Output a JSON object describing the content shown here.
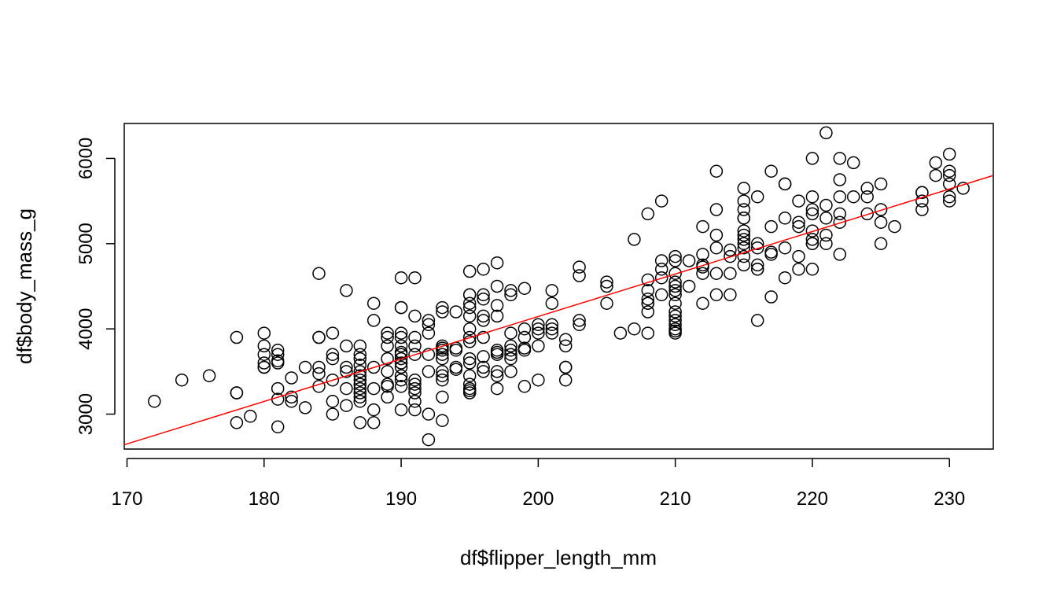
{
  "chart_data": {
    "type": "scatter",
    "title": "",
    "xlabel": "df$flipper_length_mm",
    "ylabel": "df$body_mass_g",
    "xlim": [
      169.8,
      233.2
    ],
    "ylim": [
      2590,
      6410
    ],
    "xticks": [
      170,
      180,
      190,
      200,
      210,
      220,
      230
    ],
    "yticks": [
      3000,
      4000,
      5000,
      6000
    ],
    "xtick_labels": [
      "170",
      "180",
      "190",
      "200",
      "210",
      "220",
      "230"
    ],
    "ytick_labels": [
      "3000",
      "4000",
      "5000",
      "6000"
    ],
    "grid": false,
    "legend": "none",
    "point_style": "open-circle",
    "point_color": "#000000",
    "fit_line": {
      "color": "#ff0000",
      "x": [
        169.8,
        233.2
      ],
      "y": [
        2640,
        5800
      ]
    },
    "series": [
      {
        "x": [
          172,
          174,
          176,
          178,
          178,
          178,
          178,
          179,
          180,
          180,
          180,
          180,
          180,
          180,
          181,
          181,
          181,
          181,
          181,
          181,
          181,
          182,
          182,
          182,
          183,
          183,
          184,
          184,
          184,
          184,
          184,
          184,
          185,
          185,
          185,
          185,
          185,
          185,
          186,
          186,
          186,
          186,
          186,
          186,
          187,
          187,
          187,
          187,
          187,
          187,
          187,
          187,
          187,
          187,
          187,
          187,
          187,
          188,
          188,
          188,
          188,
          188,
          188,
          189,
          189,
          189,
          189,
          189,
          189,
          189,
          189,
          190,
          190,
          190,
          190,
          190,
          190,
          190,
          190,
          190,
          190,
          190,
          190,
          190,
          190,
          190,
          191,
          191,
          191,
          191,
          191,
          191,
          191,
          191,
          191,
          191,
          191,
          192,
          192,
          192,
          192,
          192,
          192,
          192,
          193,
          193,
          193,
          193,
          193,
          193,
          193,
          193,
          193,
          193,
          193,
          193,
          194,
          194,
          194,
          194,
          194,
          195,
          195,
          195,
          195,
          195,
          195,
          195,
          195,
          195,
          195,
          195,
          195,
          195,
          195,
          195,
          195,
          196,
          196,
          196,
          196,
          196,
          196,
          196,
          196,
          196,
          197,
          197,
          197,
          197,
          197,
          197,
          197,
          197,
          197,
          197,
          198,
          198,
          198,
          198,
          198,
          198,
          198,
          198,
          199,
          199,
          199,
          199,
          199,
          199,
          200,
          200,
          200,
          200,
          200,
          201,
          201,
          201,
          201,
          201,
          202,
          202,
          202,
          202,
          202,
          203,
          203,
          203,
          203,
          205,
          205,
          205,
          206,
          207,
          207,
          208,
          208,
          208,
          208,
          208,
          208,
          208,
          208,
          209,
          209,
          209,
          209,
          209,
          210,
          210,
          210,
          210,
          210,
          210,
          210,
          210,
          210,
          210,
          210,
          210,
          210,
          210,
          210,
          211,
          211,
          212,
          212,
          212,
          212,
          212,
          212,
          213,
          213,
          213,
          213,
          213,
          213,
          214,
          214,
          214,
          214,
          215,
          215,
          215,
          215,
          215,
          215,
          215,
          215,
          215,
          215,
          215,
          215,
          216,
          216,
          216,
          216,
          216,
          216,
          216,
          217,
          217,
          217,
          217,
          217,
          218,
          218,
          218,
          218,
          218,
          219,
          219,
          219,
          219,
          219,
          220,
          220,
          220,
          220,
          220,
          220,
          220,
          220,
          220,
          221,
          221,
          221,
          221,
          221,
          222,
          222,
          222,
          222,
          222,
          222,
          223,
          223,
          224,
          224,
          224,
          225,
          225,
          225,
          225,
          226,
          228,
          228,
          228,
          228,
          229,
          229,
          230,
          230,
          230,
          230,
          230,
          230,
          231
        ],
        "y": [
          3150,
          3400,
          3450,
          3900,
          3250,
          3250,
          2900,
          2975,
          3950,
          3800,
          3700,
          3600,
          3550,
          3550,
          3750,
          3700,
          3625,
          3600,
          3300,
          3175,
          2850,
          3200,
          3150,
          3425,
          3550,
          3075,
          4650,
          3900,
          3900,
          3550,
          3475,
          3325,
          3950,
          3700,
          3650,
          3400,
          3150,
          3000,
          4450,
          3800,
          3550,
          3500,
          3300,
          3100,
          3800,
          3700,
          3650,
          3575,
          3500,
          3450,
          3400,
          3350,
          3300,
          3250,
          3200,
          3150,
          2900,
          4300,
          4100,
          3550,
          3300,
          3050,
          2900,
          3950,
          3800,
          3650,
          3500,
          3350,
          3325,
          3200,
          3900,
          4600,
          4250,
          4250,
          3950,
          3900,
          3800,
          3725,
          3700,
          3650,
          3600,
          3550,
          3450,
          3400,
          3325,
          3050,
          4600,
          4150,
          3900,
          3800,
          3700,
          3400,
          3350,
          3300,
          3250,
          3150,
          3050,
          4100,
          4050,
          3950,
          3700,
          3500,
          3000,
          2700,
          4250,
          4200,
          3800,
          3775,
          3750,
          3700,
          3650,
          3500,
          3450,
          3400,
          3200,
          2925,
          4200,
          3775,
          3750,
          3550,
          3525,
          4675,
          4400,
          4400,
          4300,
          4250,
          4150,
          4000,
          3900,
          3850,
          3650,
          3600,
          3450,
          3350,
          3300,
          3250,
          3275,
          4700,
          4400,
          4350,
          4150,
          4100,
          3900,
          3675,
          3550,
          3500,
          4775,
          4500,
          4275,
          4150,
          3750,
          3725,
          3700,
          3500,
          3450,
          3300,
          4450,
          4400,
          3950,
          3800,
          3750,
          3700,
          3650,
          3500,
          4475,
          4000,
          3900,
          3775,
          3750,
          3325,
          4050,
          4000,
          3800,
          3950,
          3400,
          4450,
          4300,
          4050,
          4000,
          3950,
          3875,
          3800,
          3550,
          3550,
          3400,
          4725,
          4625,
          4100,
          4050,
          4550,
          4500,
          4300,
          3950,
          5050,
          4000,
          5350,
          4575,
          4450,
          4350,
          4300,
          4300,
          4200,
          3950,
          5500,
          4800,
          4700,
          4600,
          4400,
          4850,
          4800,
          4650,
          4550,
          4500,
          4450,
          4400,
          4300,
          4200,
          4150,
          4100,
          4050,
          4000,
          3975,
          3950,
          4800,
          4500,
          5200,
          4875,
          4750,
          4725,
          4650,
          4300,
          5850,
          5400,
          5100,
          4950,
          4650,
          4400,
          4925,
          4850,
          4650,
          4400,
          5650,
          5500,
          5400,
          5300,
          5300,
          5150,
          5100,
          5050,
          5000,
          4950,
          4850,
          4750,
          5550,
          5000,
          4950,
          4750,
          4700,
          4700,
          4100,
          5850,
          5200,
          4900,
          4875,
          4375,
          5700,
          5700,
          5300,
          4950,
          4600,
          5500,
          5250,
          5200,
          4850,
          4700,
          6000,
          5550,
          5400,
          5350,
          5150,
          5050,
          5000,
          5000,
          4700,
          6300,
          5450,
          5300,
          5100,
          5000,
          6000,
          5750,
          5550,
          5350,
          5250,
          4875,
          5950,
          5550,
          5650,
          5550,
          5350,
          5700,
          5400,
          5250,
          5000,
          5200,
          5600,
          5600,
          5500,
          5400,
          5950,
          5800,
          6050,
          5850,
          5800,
          5700,
          5550,
          5500,
          5650
        ]
      }
    ]
  }
}
